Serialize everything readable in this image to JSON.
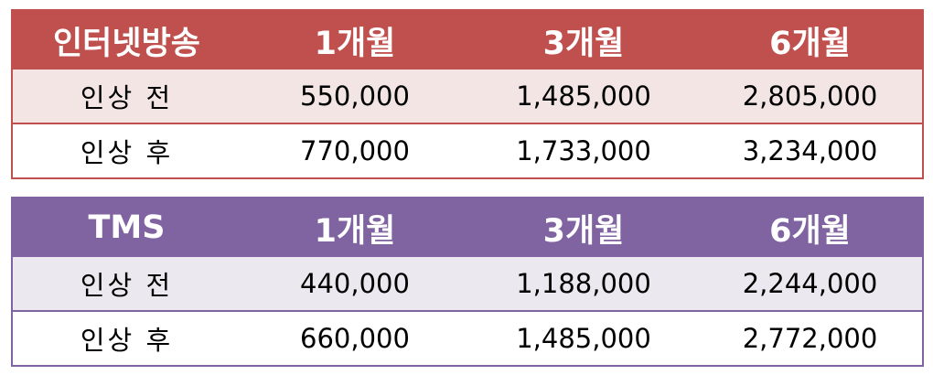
{
  "tables": [
    {
      "headers": [
        "인터넷방송",
        "1개월",
        "3개월",
        "6개월"
      ],
      "rows": [
        {
          "label": "인상 전",
          "values": [
            "550,000",
            "1,485,000",
            "2,805,000"
          ]
        },
        {
          "label": "인상 후",
          "values": [
            "770,000",
            "1,733,000",
            "3,234,000"
          ]
        }
      ],
      "accent_color": "#c0504d",
      "band_color": "#f2e5e4"
    },
    {
      "headers": [
        "TMS",
        "1개월",
        "3개월",
        "6개월"
      ],
      "rows": [
        {
          "label": "인상 전",
          "values": [
            "440,000",
            "1,188,000",
            "2,244,000"
          ]
        },
        {
          "label": "인상 후",
          "values": [
            "660,000",
            "1,485,000",
            "2,772,000"
          ]
        }
      ],
      "accent_color": "#8064a2",
      "band_color": "#ebe8ef"
    }
  ]
}
